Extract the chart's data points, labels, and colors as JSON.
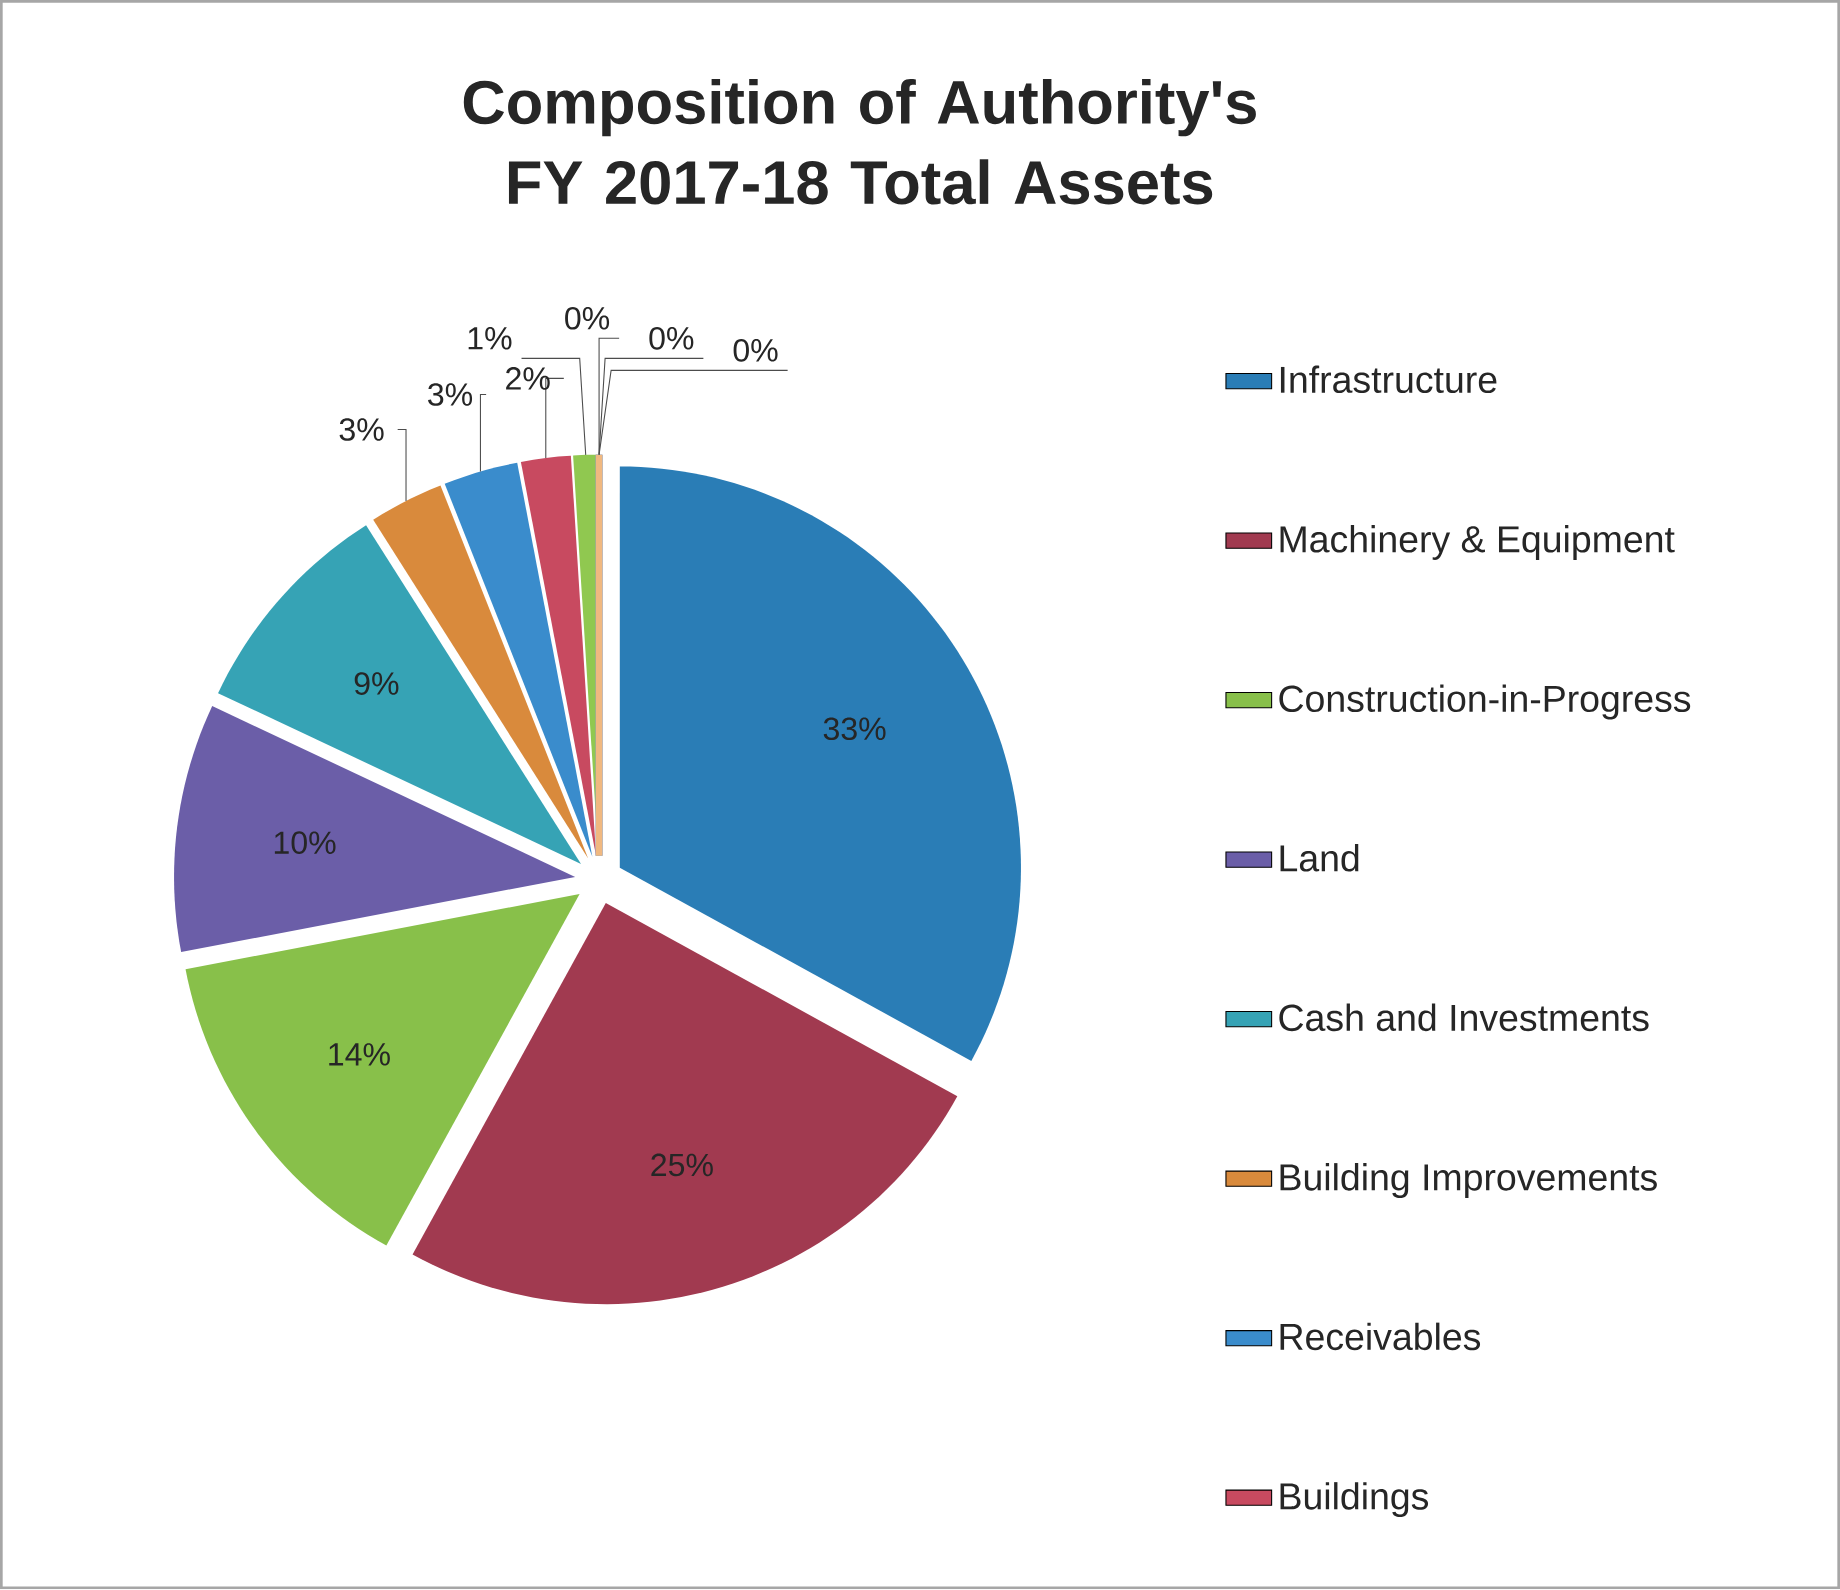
{
  "chart_data": {
    "type": "pie",
    "title": "Composition of Authority's FY 2017-18 Total Assets",
    "categories": [
      "Infrastructure",
      "Machinery & Equipment",
      "Construction-in-Progress",
      "Land",
      "Cash and Investments",
      "Building Improvements",
      "Receivables",
      "Buildings",
      null,
      null,
      null,
      null
    ],
    "values": [
      33,
      25,
      14,
      10,
      9,
      3,
      3,
      2,
      1,
      0,
      0,
      0
    ],
    "value_labels": [
      "33%",
      "25%",
      "14%",
      "10%",
      "9%",
      "3%",
      "3%",
      "2%",
      "1%",
      "0%",
      "0%",
      "0%"
    ],
    "colors": [
      "#2a7db6",
      "#a13a50",
      "#88c04a",
      "#6b5ea8",
      "#36a3b5",
      "#d98a3c",
      "#3a8ccc",
      "#c84a60",
      "#90c850",
      "#7060b0",
      "#70b8d8",
      "#f0b880"
    ],
    "legend": "right"
  }
}
